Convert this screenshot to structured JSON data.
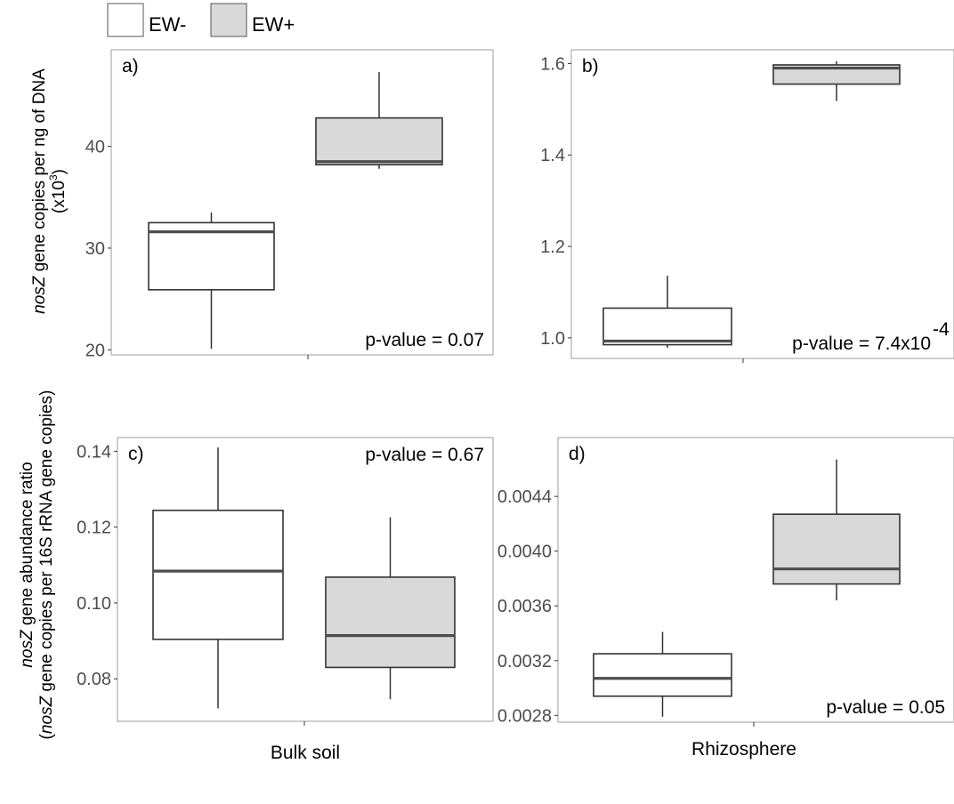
{
  "legend": {
    "entries": [
      {
        "label": "EW-",
        "fill": "#ffffff"
      },
      {
        "label": "EW+",
        "fill": "#d9d9d9"
      }
    ]
  },
  "y_label_top": {
    "italic": "nosZ",
    "rest": " gene copies per ng of DNA",
    "line2_prefix": "(x10",
    "line2_sup": "3",
    "line2_suffix": ")"
  },
  "y_label_bottom": {
    "line1_italic": "nosZ",
    "line1_rest": " gene abundance ratio",
    "line2_open": "(",
    "line2_italic": "nosZ",
    "line2_rest": " gene copies per 16S rRNA gene copies)"
  },
  "x_categories": [
    "Bulk soil",
    "Rhizosphere"
  ],
  "colors": {
    "ew_minus": "#ffffff",
    "ew_plus": "#d9d9d9",
    "stroke": "#333333",
    "median": "#4d4d4d",
    "panel_border": "#b3b3b3"
  },
  "chart_data": [
    {
      "type": "box",
      "panel": "a)",
      "category": "Bulk soil",
      "ylim": [
        19.5,
        49.5
      ],
      "yticks": [
        20,
        30,
        40
      ],
      "ytick_labels": [
        "20",
        "30",
        "40"
      ],
      "p_value": {
        "text": "p-value = 0.07",
        "sup": "",
        "corner": "bottom-right"
      },
      "series": [
        {
          "name": "EW-",
          "min": 20.1,
          "q1": 25.9,
          "median": 31.6,
          "q3": 32.5,
          "max": 33.5
        },
        {
          "name": "EW+",
          "min": 37.8,
          "q1": 38.2,
          "median": 38.5,
          "q3": 42.8,
          "max": 47.3
        }
      ]
    },
    {
      "type": "box",
      "panel": "b)",
      "category": "Rhizosphere",
      "ylim": [
        0.955,
        1.63
      ],
      "yticks": [
        1.0,
        1.2,
        1.4,
        1.6
      ],
      "ytick_labels": [
        "1.0",
        "1.2",
        "1.4",
        "1.6"
      ],
      "p_value": {
        "text": "p-value = 7.4x10",
        "sup": "-4",
        "corner": "bottom-right"
      },
      "series": [
        {
          "name": "EW-",
          "min": 0.978,
          "q1": 0.985,
          "median": 0.993,
          "q3": 1.065,
          "max": 1.136
        },
        {
          "name": "EW+",
          "min": 1.518,
          "q1": 1.555,
          "median": 1.59,
          "q3": 1.597,
          "max": 1.605
        }
      ]
    },
    {
      "type": "box",
      "panel": "c)",
      "category": "Bulk soil",
      "ylim": [
        0.0688,
        0.1436
      ],
      "yticks": [
        0.08,
        0.1,
        0.12,
        0.14
      ],
      "ytick_labels": [
        "0.08",
        "0.10",
        "0.12",
        "0.14"
      ],
      "p_value": {
        "text": "p-value = 0.67",
        "sup": "",
        "corner": "top-right"
      },
      "series": [
        {
          "name": "EW-",
          "min": 0.0722,
          "q1": 0.0904,
          "median": 0.1084,
          "q3": 0.1244,
          "max": 0.141
        },
        {
          "name": "EW+",
          "min": 0.0746,
          "q1": 0.083,
          "median": 0.0914,
          "q3": 0.1068,
          "max": 0.1226
        }
      ]
    },
    {
      "type": "box",
      "panel": "d)",
      "category": "Rhizosphere",
      "ylim": [
        0.00275,
        0.00483
      ],
      "yticks": [
        0.0028,
        0.0032,
        0.0036,
        0.004,
        0.0044
      ],
      "ytick_labels": [
        "0.0028",
        "0.0032",
        "0.0036",
        "0.0040",
        "0.0044"
      ],
      "p_value": {
        "text": "p-value = 0.05",
        "sup": "",
        "corner": "bottom-right"
      },
      "series": [
        {
          "name": "EW-",
          "min": 0.00279,
          "q1": 0.00294,
          "median": 0.00307,
          "q3": 0.00325,
          "max": 0.00341
        },
        {
          "name": "EW+",
          "min": 0.00364,
          "q1": 0.00376,
          "median": 0.00387,
          "q3": 0.00427,
          "max": 0.00467
        }
      ]
    }
  ]
}
